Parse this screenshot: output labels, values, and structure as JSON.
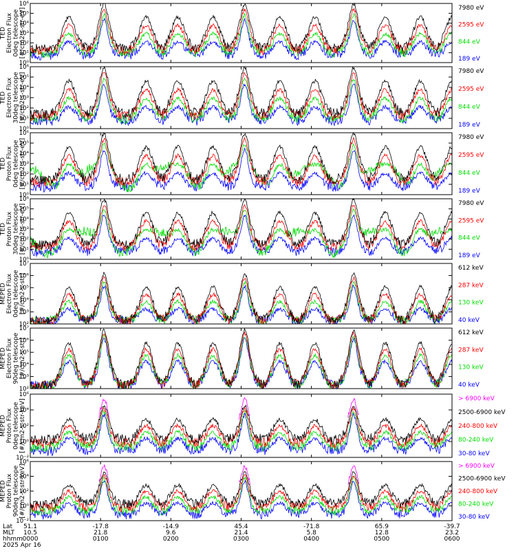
{
  "chart_data": [
    {
      "type": "line",
      "ylabel": [
        "TED",
        "Electron Flux",
        "0deg telescope",
        "[#/cm2-s-str-eV]"
      ],
      "y_log": true,
      "ylim_exp": [
        0,
        6
      ],
      "tick_labels": [
        "10⁰",
        "10¹",
        "10²",
        "10³",
        "10⁴",
        "10⁵",
        "10⁶"
      ],
      "legend": [
        {
          "label": "7980 eV",
          "color": "#000000"
        },
        {
          "label": "2595 eV",
          "color": "#ff0000"
        },
        {
          "label": "844 eV",
          "color": "#00dd00"
        },
        {
          "label": "189 eV",
          "color": "#0000ff"
        }
      ]
    },
    {
      "type": "line",
      "ylabel": [
        "TED",
        "Electron Flux",
        "30deg telescope",
        "[#/cm2-s-str-eV]"
      ],
      "y_log": true,
      "ylim_exp": [
        0,
        6
      ],
      "tick_labels": [
        "10⁰",
        "10¹",
        "10²",
        "10³",
        "10⁴",
        "10⁵",
        "10⁶"
      ],
      "legend": [
        {
          "label": "7980 eV",
          "color": "#000000"
        },
        {
          "label": "2595 eV",
          "color": "#ff0000"
        },
        {
          "label": "844 eV",
          "color": "#00dd00"
        },
        {
          "label": "189 eV",
          "color": "#0000ff"
        }
      ]
    },
    {
      "type": "line",
      "ylabel": [
        "TED",
        "Proton Flux",
        "0deg telescope",
        "[#/cm2-s-str-eV]"
      ],
      "y_log": true,
      "ylim_exp": [
        0,
        6
      ],
      "tick_labels": [
        "10⁰",
        "10¹",
        "10²",
        "10³",
        "10⁴",
        "10⁵",
        "10⁶"
      ],
      "legend": [
        {
          "label": "7980 eV",
          "color": "#000000"
        },
        {
          "label": "2595 eV",
          "color": "#ff0000"
        },
        {
          "label": "844 eV",
          "color": "#00dd00"
        },
        {
          "label": "189 eV",
          "color": "#0000ff"
        }
      ]
    },
    {
      "type": "line",
      "ylabel": [
        "TED",
        "Proton Flux",
        "30deg telescope",
        "[#/cm2-s-str-eV]"
      ],
      "y_log": true,
      "ylim_exp": [
        0,
        6
      ],
      "tick_labels": [
        "10⁰",
        "10¹",
        "10²",
        "10³",
        "10⁴",
        "10⁵",
        "10⁶"
      ],
      "legend": [
        {
          "label": "7980 eV",
          "color": "#000000"
        },
        {
          "label": "2595 eV",
          "color": "#ff0000"
        },
        {
          "label": "844 eV",
          "color": "#00dd00"
        },
        {
          "label": "189 eV",
          "color": "#0000ff"
        }
      ]
    },
    {
      "type": "line",
      "ylabel": [
        "MEPED",
        "Electron Flux",
        "0deg telescope",
        "[#/cm2-s-str]"
      ],
      "y_log": true,
      "ylim_exp": [
        2,
        7
      ],
      "tick_labels": [
        "10²",
        "10³",
        "10⁴",
        "10⁵",
        "10⁶",
        "10⁷"
      ],
      "legend": [
        {
          "label": "612 keV",
          "color": "#000000"
        },
        {
          "label": "287 keV",
          "color": "#ff0000"
        },
        {
          "label": "130 keV",
          "color": "#00dd00"
        },
        {
          "label": "40 keV",
          "color": "#0000ff"
        }
      ]
    },
    {
      "type": "line",
      "ylabel": [
        "MEPED",
        "Electron Flux",
        "90deg telescope",
        "[#/cm2-s-str]"
      ],
      "y_log": true,
      "ylim_exp": [
        2,
        7
      ],
      "tick_labels": [
        "10²",
        "10³",
        "10⁴",
        "10⁵",
        "10⁶",
        "10⁷"
      ],
      "legend": [
        {
          "label": "612 keV",
          "color": "#000000"
        },
        {
          "label": "287 keV",
          "color": "#ff0000"
        },
        {
          "label": "130 keV",
          "color": "#00dd00"
        },
        {
          "label": "40 keV",
          "color": "#0000ff"
        }
      ]
    },
    {
      "type": "line",
      "ylabel": [
        "MEPED",
        "Proton Flux",
        "0deg telescope",
        "[#/cm2-s-str-keV]"
      ],
      "y_log": true,
      "ylim_exp": [
        -2,
        6
      ],
      "tick_labels": [
        "10⁻²",
        "10⁰",
        "10²",
        "10⁴",
        "10⁶"
      ],
      "legend": [
        {
          "label": "> 6900 keV",
          "color": "#ff00ff"
        },
        {
          "label": "2500-6900 keV",
          "color": "#000000"
        },
        {
          "label": "240-800 keV",
          "color": "#ff0000"
        },
        {
          "label": "80-240 keV",
          "color": "#00dd00"
        },
        {
          "label": "30-80 keV",
          "color": "#0000ff"
        }
      ]
    },
    {
      "type": "line",
      "ylabel": [
        "MEPED",
        "Proton Flux",
        "90deg telescope",
        "[#/cm2-s-str-keV]"
      ],
      "y_log": true,
      "ylim_exp": [
        -2,
        6
      ],
      "tick_labels": [
        "10⁻²",
        "10⁰",
        "10²",
        "10⁴",
        "10⁶"
      ],
      "legend": [
        {
          "label": "> 6900 keV",
          "color": "#ff00ff"
        },
        {
          "label": "2500-6900 keV",
          "color": "#000000"
        },
        {
          "label": "240-800 keV",
          "color": "#ff0000"
        },
        {
          "label": "80-240 keV",
          "color": "#00dd00"
        },
        {
          "label": "30-80 keV",
          "color": "#0000ff"
        }
      ]
    }
  ],
  "x_axis": {
    "hours": [
      0,
      1,
      2,
      3,
      4,
      5,
      6
    ],
    "rows": [
      {
        "label": "Lat",
        "values": [
          "51.1",
          "-17.8",
          "-14.9",
          "45.4",
          "-71.8",
          "65.9",
          "-39.7"
        ]
      },
      {
        "label": "MLT",
        "values": [
          "10.5",
          "21.8",
          "9.6",
          "21.4",
          "5.8",
          "12.8",
          "23.2"
        ]
      },
      {
        "label": "hhmm",
        "values": [
          "0000",
          "0100",
          "0200",
          "0300",
          "0400",
          "0500",
          "0600"
        ]
      }
    ],
    "date": "2025 Apr 16"
  }
}
